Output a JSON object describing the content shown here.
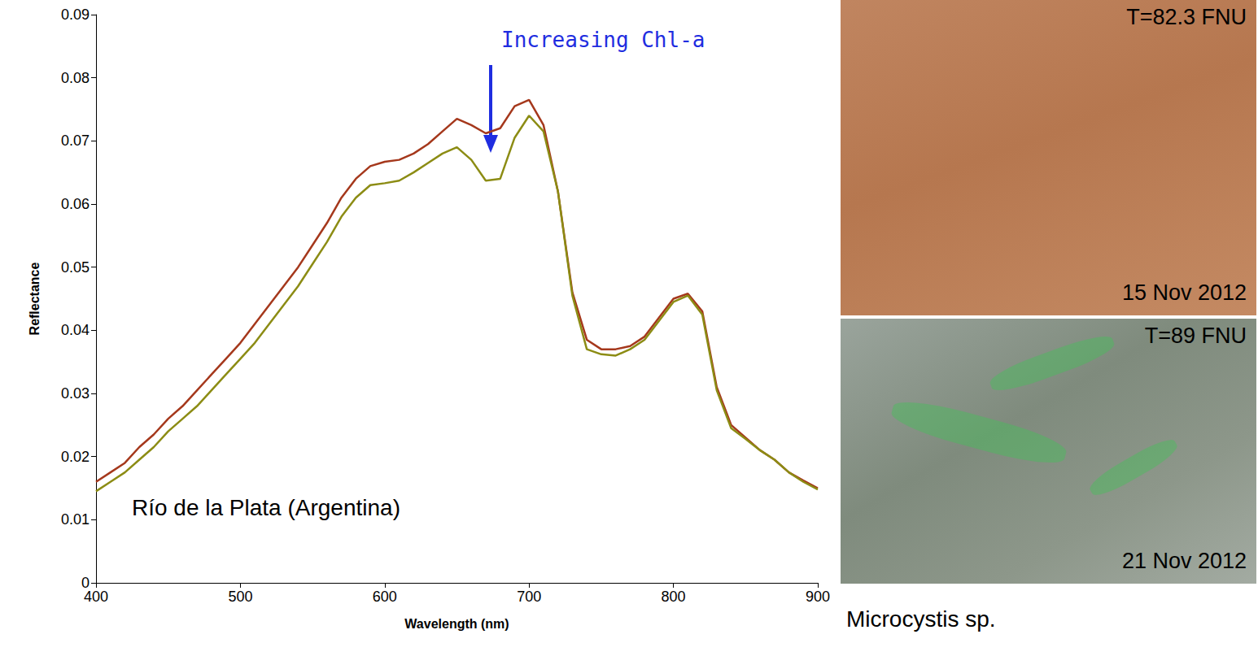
{
  "chart_data": {
    "type": "line",
    "xlabel": "Wavelength (nm)",
    "ylabel": "Reflectance",
    "annotations": [
      "Increasing Chl-a",
      "Río de la Plata (Argentina)"
    ],
    "x": [
      400,
      410,
      420,
      430,
      440,
      450,
      460,
      470,
      480,
      490,
      500,
      510,
      520,
      530,
      540,
      550,
      560,
      570,
      580,
      590,
      600,
      610,
      620,
      630,
      640,
      650,
      660,
      670,
      680,
      690,
      700,
      710,
      720,
      730,
      740,
      750,
      760,
      770,
      780,
      790,
      800,
      810,
      820,
      830,
      840,
      850,
      860,
      870,
      880,
      890,
      900
    ],
    "series": [
      {
        "color": "#a5381c",
        "values": [
          0.016,
          0.0175,
          0.019,
          0.0215,
          0.0235,
          0.026,
          0.028,
          0.0305,
          0.033,
          0.0355,
          0.038,
          0.041,
          0.044,
          0.047,
          0.05,
          0.0535,
          0.057,
          0.061,
          0.064,
          0.066,
          0.0667,
          0.067,
          0.068,
          0.0695,
          0.0715,
          0.0735,
          0.0725,
          0.0712,
          0.072,
          0.0755,
          0.0765,
          0.0725,
          0.062,
          0.046,
          0.0385,
          0.037,
          0.037,
          0.0375,
          0.039,
          0.042,
          0.045,
          0.0458,
          0.043,
          0.031,
          0.025,
          0.023,
          0.021,
          0.0195,
          0.0175,
          0.0162,
          0.015
        ]
      },
      {
        "color": "#8c8c14",
        "values": [
          0.0145,
          0.016,
          0.0175,
          0.0195,
          0.0215,
          0.024,
          0.026,
          0.028,
          0.0305,
          0.033,
          0.0355,
          0.038,
          0.041,
          0.044,
          0.047,
          0.0505,
          0.054,
          0.058,
          0.061,
          0.063,
          0.0633,
          0.0637,
          0.065,
          0.0665,
          0.068,
          0.069,
          0.067,
          0.0637,
          0.064,
          0.0705,
          0.074,
          0.0715,
          0.062,
          0.0455,
          0.037,
          0.0362,
          0.036,
          0.037,
          0.0385,
          0.0415,
          0.0445,
          0.0455,
          0.0425,
          0.0305,
          0.0245,
          0.0228,
          0.021,
          0.0195,
          0.0175,
          0.016,
          0.0148
        ]
      }
    ],
    "xlim": [
      400,
      900
    ],
    "ylim": [
      0,
      0.09
    ],
    "xticks": [
      400,
      500,
      600,
      700,
      800,
      900
    ],
    "yticks": [
      0,
      0.01,
      0.02,
      0.03,
      0.04,
      0.05,
      0.06,
      0.07,
      0.08,
      0.09
    ],
    "grid": false
  },
  "photos": [
    {
      "turbidity": "T=82.3 FNU",
      "date": "15 Nov 2012"
    },
    {
      "turbidity": "T=89 FNU",
      "date": "21 Nov 2012"
    }
  ],
  "caption": "Microcystis sp."
}
